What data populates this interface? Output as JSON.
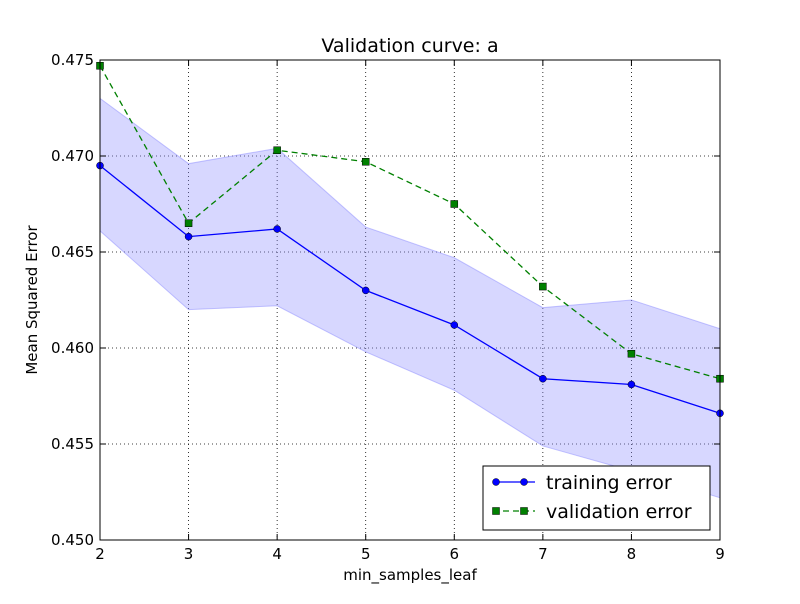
{
  "chart_data": {
    "type": "line",
    "title": "Validation curve: a",
    "xlabel": "min_samples_leaf",
    "ylabel": "Mean Squared Error",
    "x": [
      2,
      3,
      4,
      5,
      6,
      7,
      8,
      9
    ],
    "xlim": [
      2,
      9
    ],
    "ylim": [
      0.45,
      0.475
    ],
    "x_ticks": [
      "2",
      "3",
      "4",
      "5",
      "6",
      "7",
      "8",
      "9"
    ],
    "y_ticks": [
      "0.450",
      "0.455",
      "0.460",
      "0.465",
      "0.470",
      "0.475"
    ],
    "grid": true,
    "legend_position": "bottom-right",
    "series": [
      {
        "name": "training error",
        "marker": "circle",
        "linestyle": "solid",
        "color": "#0000ff",
        "values": [
          0.4695,
          0.4658,
          0.4662,
          0.463,
          0.4612,
          0.4584,
          0.4581,
          0.4566
        ],
        "band_lower": [
          0.4661,
          0.462,
          0.4622,
          0.4598,
          0.4578,
          0.4549,
          0.4536,
          0.4522
        ],
        "band_upper": [
          0.473,
          0.4696,
          0.4704,
          0.4663,
          0.4647,
          0.4621,
          0.4625,
          0.461
        ]
      },
      {
        "name": "validation error",
        "marker": "square",
        "linestyle": "dashed",
        "color": "#008000",
        "values": [
          0.4747,
          0.4665,
          0.4703,
          0.4697,
          0.4675,
          0.4632,
          0.4597,
          0.4584
        ]
      }
    ],
    "band_color": "#8c8cff"
  }
}
